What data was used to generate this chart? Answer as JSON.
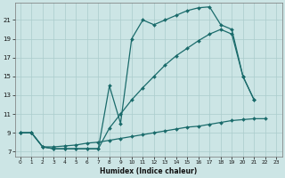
{
  "bg_color": "#cce5e5",
  "grid_color": "#aacccc",
  "line_color": "#1a6b6b",
  "xlabel": "Humidex (Indice chaleur)",
  "ylim": [
    6.5,
    22.8
  ],
  "xlim": [
    -0.5,
    23.5
  ],
  "yticks": [
    7,
    9,
    11,
    13,
    15,
    17,
    19,
    21
  ],
  "xticks": [
    0,
    1,
    2,
    3,
    4,
    5,
    6,
    7,
    8,
    9,
    10,
    11,
    12,
    13,
    14,
    15,
    16,
    17,
    18,
    19,
    20,
    21,
    22,
    23
  ],
  "curve1_x": [
    0,
    1,
    2,
    3,
    4,
    5,
    6,
    7,
    8,
    9,
    10,
    11,
    12,
    13,
    14,
    15,
    16,
    17,
    18,
    19,
    20,
    21
  ],
  "curve1_y": [
    9.0,
    9.0,
    7.5,
    7.3,
    7.3,
    7.3,
    7.3,
    7.3,
    14.0,
    10.0,
    19.0,
    21.0,
    20.5,
    21.0,
    21.5,
    22.0,
    22.3,
    22.4,
    20.5,
    20.0,
    15.0,
    12.5
  ],
  "curve2_x": [
    0,
    1,
    2,
    3,
    4,
    5,
    6,
    7,
    8,
    9,
    10,
    11,
    12,
    13,
    14,
    15,
    16,
    17,
    18,
    19,
    20,
    21
  ],
  "curve2_y": [
    9.0,
    9.0,
    7.5,
    7.3,
    7.3,
    7.3,
    7.3,
    7.3,
    9.5,
    11.0,
    12.5,
    13.8,
    15.0,
    16.2,
    17.2,
    18.0,
    18.8,
    19.5,
    20.0,
    19.5,
    15.0,
    12.5
  ],
  "curve3_x": [
    0,
    1,
    2,
    3,
    4,
    5,
    6,
    7,
    8,
    9,
    10,
    11,
    12,
    13,
    14,
    15,
    16,
    17,
    18,
    19,
    20,
    21,
    22
  ],
  "curve3_y": [
    9.0,
    9.0,
    7.5,
    7.5,
    7.6,
    7.7,
    7.9,
    8.0,
    8.2,
    8.4,
    8.6,
    8.8,
    9.0,
    9.2,
    9.4,
    9.6,
    9.7,
    9.9,
    10.1,
    10.3,
    10.4,
    10.5,
    10.5
  ]
}
